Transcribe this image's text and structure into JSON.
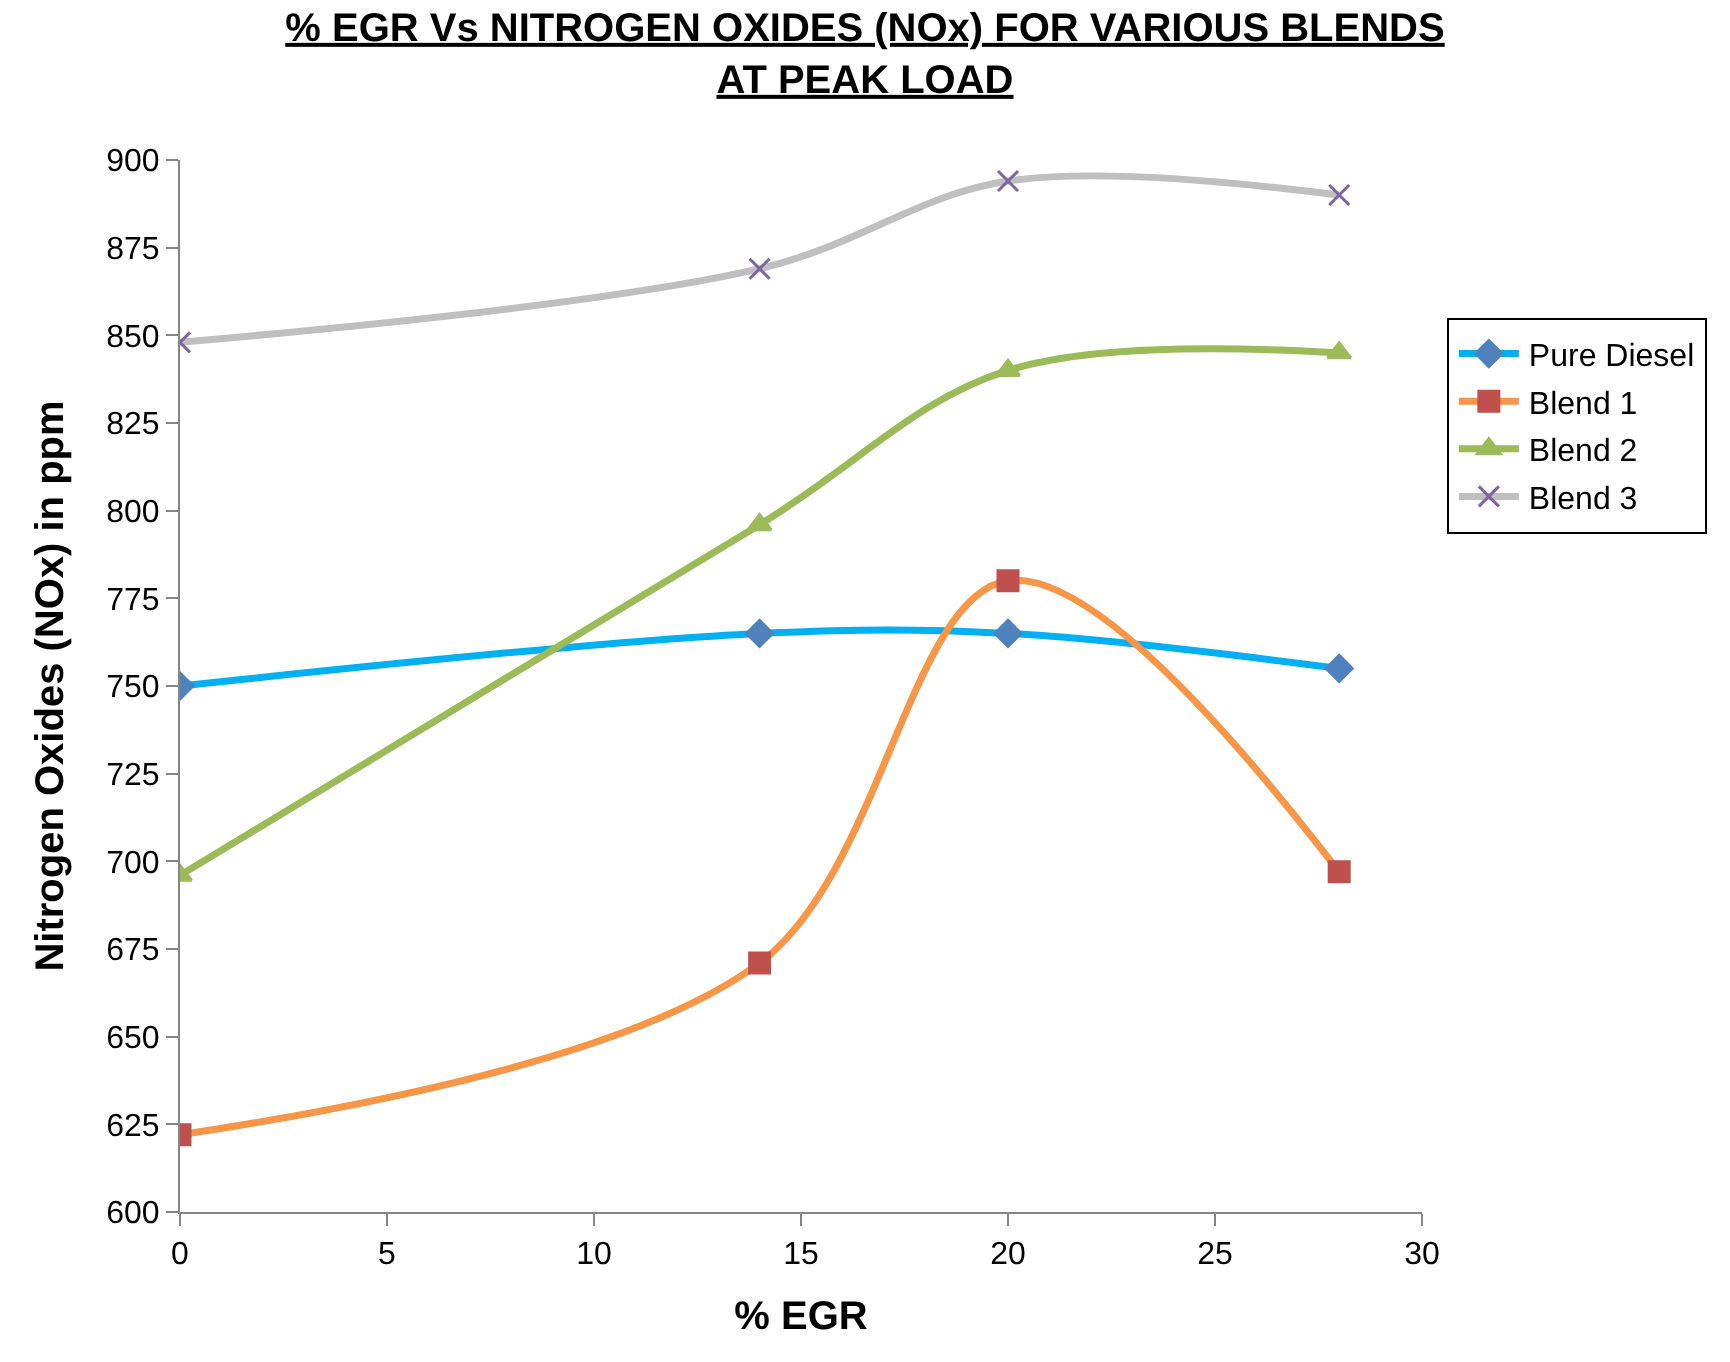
{
  "chart_data": {
    "type": "line",
    "title": "% EGR Vs NITROGEN OXIDES (NOx) FOR VARIOUS BLENDS AT PEAK LOAD",
    "xlabel": "% EGR",
    "ylabel": "Nitrogen Oxides (NOx) in ppm",
    "x": [
      0,
      14,
      20,
      28
    ],
    "series": [
      {
        "name": "Pure Diesel",
        "color": "#00b0f0",
        "marker": "diamond",
        "values": [
          750,
          765,
          765,
          755
        ]
      },
      {
        "name": "Blend 1",
        "color": "#f79646",
        "marker": "square",
        "values": [
          622,
          671,
          780,
          697
        ]
      },
      {
        "name": "Blend 2",
        "color": "#9bbb59",
        "marker": "triangle",
        "values": [
          696,
          796,
          840,
          845
        ]
      },
      {
        "name": "Blend 3",
        "color": "#bfbfbf",
        "marker": "cross",
        "values": [
          848,
          869,
          894,
          890
        ]
      }
    ],
    "xlim": [
      0,
      30
    ],
    "xticks": [
      0,
      5,
      10,
      15,
      20,
      25,
      30
    ],
    "ylim": [
      600,
      900
    ],
    "yticks": [
      600,
      625,
      650,
      675,
      700,
      725,
      750,
      775,
      800,
      825,
      850,
      875,
      900
    ],
    "legend": "right",
    "line_style": "solid"
  }
}
